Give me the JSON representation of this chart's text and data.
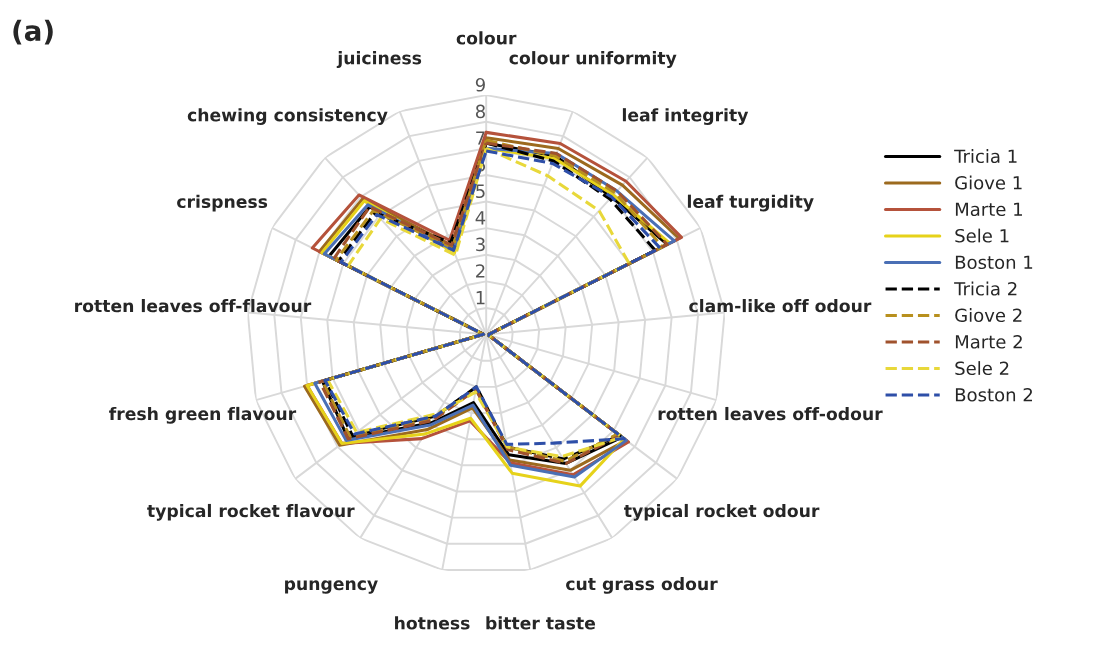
{
  "chart_data": {
    "type": "radar",
    "title": "(a)",
    "categories": [
      "colour",
      "colour uniformity",
      "leaf integrity",
      "leaf turgidity",
      "clam-like off odour",
      "rotten leaves off-odour",
      "typical rocket odour",
      "cut grass odour",
      "bitter taste",
      "hotness",
      "pungency",
      "typical rocket flavour",
      "fresh green flavour",
      "rotten leaves off-flavour",
      "crispness",
      "chewing consistency",
      "juiciness"
    ],
    "ylim": [
      0,
      9
    ],
    "yticks": [
      1,
      2,
      3,
      4,
      5,
      6,
      7,
      8,
      9
    ],
    "grid": true,
    "legend": "right",
    "series": [
      {
        "name": "Tricia 1",
        "color": "#000000",
        "line_style": "solid",
        "values": [
          7.2,
          7.2,
          7.0,
          7.6,
          0.1,
          0.1,
          6.4,
          5.7,
          4.6,
          2.6,
          3.9,
          6.5,
          6.4,
          0.1,
          6.6,
          6.5,
          3.5
        ]
      },
      {
        "name": "Giove 1",
        "color": "#9c6a1e",
        "line_style": "solid",
        "values": [
          7.4,
          7.5,
          7.6,
          8.1,
          0.1,
          0.1,
          6.6,
          6.0,
          4.8,
          2.8,
          4.2,
          6.9,
          7.1,
          0.1,
          7.0,
          6.9,
          3.6
        ]
      },
      {
        "name": "Marte 1",
        "color": "#b5523b",
        "line_style": "solid",
        "values": [
          7.6,
          7.7,
          7.8,
          8.2,
          0.1,
          0.1,
          6.7,
          6.2,
          4.9,
          3.3,
          4.6,
          6.8,
          7.0,
          0.1,
          7.3,
          7.1,
          3.8
        ]
      },
      {
        "name": "Sele 1",
        "color": "#e6d21a",
        "line_style": "solid",
        "values": [
          7.0,
          7.1,
          7.1,
          7.7,
          0.1,
          0.1,
          6.5,
          6.7,
          5.3,
          3.2,
          4.4,
          6.8,
          7.0,
          0.1,
          6.9,
          6.8,
          3.3
        ]
      },
      {
        "name": "Boston 1",
        "color": "#4a6fb5",
        "line_style": "solid",
        "values": [
          7.0,
          7.3,
          7.3,
          7.9,
          0.1,
          0.1,
          6.6,
          6.3,
          5.0,
          2.7,
          4.0,
          6.6,
          6.7,
          0.1,
          6.8,
          6.6,
          3.4
        ]
      },
      {
        "name": "Tricia 2",
        "color": "#000000",
        "line_style": "dashed",
        "values": [
          7.2,
          7.0,
          6.9,
          7.1,
          0.1,
          0.1,
          6.3,
          5.5,
          4.3,
          2.0,
          3.6,
          6.3,
          6.3,
          0.1,
          6.2,
          6.2,
          3.7
        ]
      },
      {
        "name": "Giove 2",
        "color": "#b8901e",
        "line_style": "dashed",
        "values": [
          7.3,
          7.2,
          7.2,
          7.4,
          0.1,
          0.1,
          6.2,
          5.6,
          4.3,
          2.1,
          3.7,
          6.4,
          6.4,
          0.1,
          6.3,
          6.3,
          3.5
        ]
      },
      {
        "name": "Marte 2",
        "color": "#a0522d",
        "line_style": "dashed",
        "values": [
          7.2,
          7.3,
          7.3,
          7.6,
          0.1,
          0.1,
          6.3,
          5.7,
          4.4,
          2.1,
          3.8,
          6.5,
          6.5,
          0.1,
          6.4,
          6.5,
          3.6
        ]
      },
      {
        "name": "Sele 2",
        "color": "#e8d83a",
        "line_style": "dashed",
        "values": [
          7.0,
          6.4,
          6.3,
          6.0,
          0.1,
          0.1,
          6.4,
          5.4,
          4.3,
          2.2,
          3.5,
          6.1,
          6.2,
          0.1,
          5.8,
          5.9,
          3.2
        ]
      },
      {
        "name": "Boston 2",
        "color": "#2e4fa8",
        "line_style": "dashed",
        "values": [
          6.9,
          6.9,
          7.0,
          7.3,
          0.1,
          0.1,
          6.5,
          4.8,
          4.2,
          2.0,
          3.6,
          6.2,
          6.3,
          0.1,
          6.1,
          6.1,
          3.4
        ]
      }
    ]
  }
}
